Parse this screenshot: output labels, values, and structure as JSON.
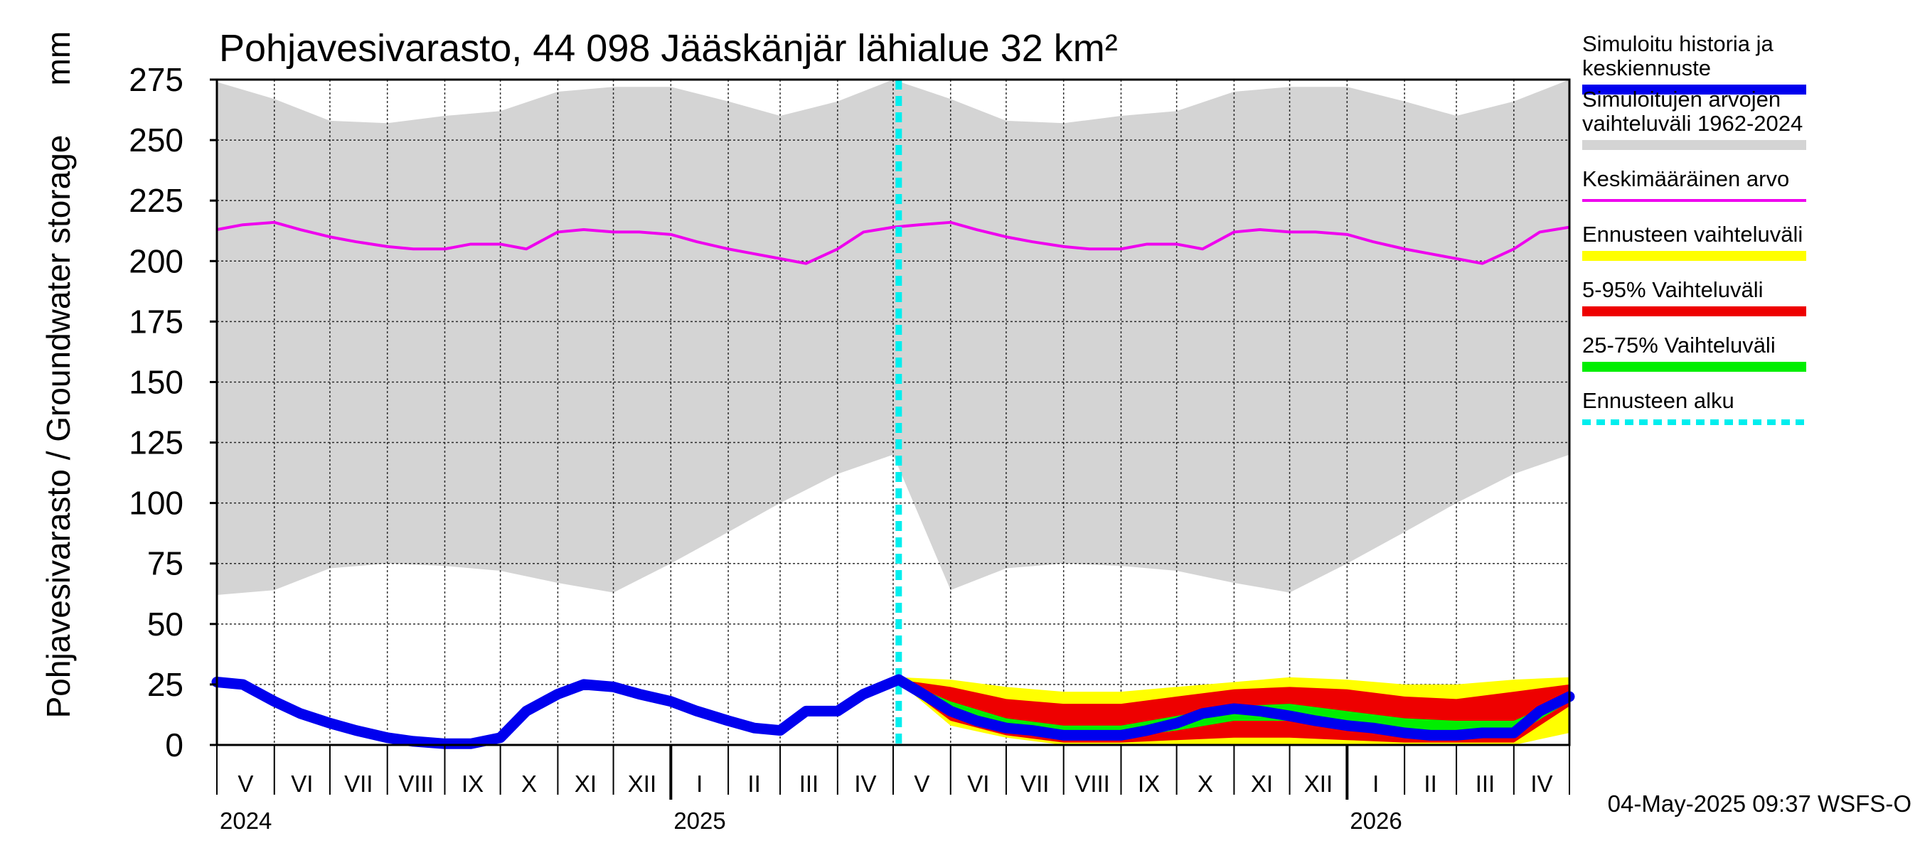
{
  "chart_data": {
    "type": "area",
    "title": "Pohjavesivarasto, 44 098 Jääskänjär lähialue 32 km²",
    "ylabel": "Pohjavesivarasto / Groundwater storage",
    "yunit": "mm",
    "ylim": [
      0,
      275
    ],
    "yticks": [
      0,
      25,
      50,
      75,
      100,
      125,
      150,
      175,
      200,
      225,
      250,
      275
    ],
    "xlim": [
      "2024-05-01",
      "2026-05-01"
    ],
    "grid": true,
    "legend_position": "right",
    "month_labels": [
      "V",
      "VI",
      "VII",
      "VIII",
      "IX",
      "X",
      "XI",
      "XII",
      "I",
      "II",
      "III",
      "IV",
      "V",
      "VI",
      "VII",
      "VIII",
      "IX",
      "X",
      "XI",
      "XII",
      "I",
      "II",
      "III",
      "IV"
    ],
    "year_labels": [
      {
        "label": "2024",
        "date": "2024-05-01"
      },
      {
        "label": "2025",
        "date": "2025-01-01"
      },
      {
        "label": "2026",
        "date": "2026-01-01"
      }
    ],
    "forecast_start": "2025-05-04",
    "footer": "04-May-2025 09:37 WSFS-O",
    "colors": {
      "history": "#0000ee",
      "range": "#d4d4d4",
      "mean": "#ee00ee",
      "forecast_range": "#ffff00",
      "p5_95": "#ee0000",
      "p25_75": "#00ee00",
      "forecast_start": "#00eeee"
    },
    "legend": [
      {
        "key": "history",
        "lines": [
          "Simuloitu historia ja",
          "keskiennuste"
        ],
        "style": "thick"
      },
      {
        "key": "range",
        "lines": [
          "Simuloitujen arvojen",
          "vaihteluväli 1962-2024"
        ],
        "style": "thick"
      },
      {
        "key": "mean",
        "lines": [
          "Keskimääräinen arvo"
        ],
        "style": "thin"
      },
      {
        "key": "forecast_range",
        "lines": [
          "Ennusteen vaihteluväli"
        ],
        "style": "thick"
      },
      {
        "key": "p5_95",
        "lines": [
          "5-95% Vaihteluväli"
        ],
        "style": "thick"
      },
      {
        "key": "p25_75",
        "lines": [
          "25-75% Vaihteluväli"
        ],
        "style": "thick"
      },
      {
        "key": "forecast_start",
        "lines": [
          "Ennusteen alku"
        ],
        "style": "dashed"
      }
    ],
    "series": [
      {
        "name": "Simuloitu historia ja keskiennuste",
        "x": [
          "2024-05-01",
          "2024-05-15",
          "2024-06-01",
          "2024-06-15",
          "2024-07-01",
          "2024-07-15",
          "2024-08-01",
          "2024-08-15",
          "2024-09-01",
          "2024-09-15",
          "2024-10-01",
          "2024-10-15",
          "2024-11-01",
          "2024-11-15",
          "2024-12-01",
          "2024-12-15",
          "2025-01-01",
          "2025-01-15",
          "2025-02-01",
          "2025-02-15",
          "2025-03-01",
          "2025-03-15",
          "2025-04-01",
          "2025-04-15",
          "2025-05-04",
          "2025-05-15",
          "2025-06-01",
          "2025-06-15",
          "2025-07-01",
          "2025-07-15",
          "2025-08-01",
          "2025-08-15",
          "2025-09-01",
          "2025-09-15",
          "2025-10-01",
          "2025-10-15",
          "2025-11-01",
          "2025-11-15",
          "2025-12-01",
          "2025-12-15",
          "2026-01-01",
          "2026-01-15",
          "2026-02-01",
          "2026-02-15",
          "2026-03-01",
          "2026-03-15",
          "2026-04-01",
          "2026-04-15",
          "2026-05-01"
        ],
        "values": [
          26,
          25,
          18,
          13,
          9,
          6,
          3,
          1.5,
          0.5,
          0.5,
          3,
          14,
          21,
          25,
          24,
          21,
          18,
          14,
          10,
          7,
          6,
          14,
          14,
          21,
          27,
          22,
          14,
          10,
          7,
          6,
          4,
          4,
          4,
          6,
          9,
          13,
          15,
          14,
          12,
          10,
          8,
          7,
          5,
          4,
          4,
          5,
          5,
          14,
          20
        ]
      },
      {
        "name": "Keskimääräinen arvo",
        "x": [
          "2024-05-01",
          "2024-05-15",
          "2024-06-01",
          "2024-06-15",
          "2024-07-01",
          "2024-07-15",
          "2024-08-01",
          "2024-08-15",
          "2024-09-01",
          "2024-09-15",
          "2024-10-01",
          "2024-10-15",
          "2024-11-01",
          "2024-11-15",
          "2024-12-01",
          "2024-12-15",
          "2025-01-01",
          "2025-01-15",
          "2025-02-01",
          "2025-02-15",
          "2025-03-01",
          "2025-03-15",
          "2025-04-01",
          "2025-04-15",
          "2025-05-01",
          "2025-05-15",
          "2025-06-01",
          "2025-06-15",
          "2025-07-01",
          "2025-07-15",
          "2025-08-01",
          "2025-08-15",
          "2025-09-01",
          "2025-09-15",
          "2025-10-01",
          "2025-10-15",
          "2025-11-01",
          "2025-11-15",
          "2025-12-01",
          "2025-12-15",
          "2026-01-01",
          "2026-01-15",
          "2026-02-01",
          "2026-02-15",
          "2026-03-01",
          "2026-03-15",
          "2026-04-01",
          "2026-04-15",
          "2026-05-01"
        ],
        "values": [
          213,
          215,
          216,
          213,
          210,
          208,
          206,
          205,
          205,
          207,
          207,
          205,
          212,
          213,
          212,
          212,
          211,
          208,
          205,
          203,
          201,
          199,
          205,
          212,
          214,
          215,
          216,
          213,
          210,
          208,
          206,
          205,
          205,
          207,
          207,
          205,
          212,
          213,
          212,
          212,
          211,
          208,
          205,
          203,
          201,
          199,
          205,
          212,
          214
        ]
      },
      {
        "name": "Simuloitujen arvojen vaihteluväli 1962-2024",
        "x": [
          "2024-05-01",
          "2024-06-01",
          "2024-07-01",
          "2024-08-01",
          "2024-09-01",
          "2024-10-01",
          "2024-11-01",
          "2024-12-01",
          "2025-01-01",
          "2025-02-01",
          "2025-03-01",
          "2025-04-01",
          "2025-05-01",
          "2025-06-01",
          "2025-07-01",
          "2025-08-01",
          "2025-09-01",
          "2025-10-01",
          "2025-11-01",
          "2025-12-01",
          "2026-01-01",
          "2026-02-01",
          "2026-03-01",
          "2026-04-01",
          "2026-05-01"
        ],
        "max": [
          274,
          267,
          258,
          257,
          260,
          262,
          270,
          272,
          272,
          266,
          260,
          266,
          275,
          267,
          258,
          257,
          260,
          262,
          270,
          272,
          272,
          266,
          260,
          266,
          275
        ],
        "min": [
          62,
          64,
          73,
          75,
          74,
          72,
          67,
          63,
          75,
          88,
          100,
          112,
          120,
          64,
          73,
          75,
          74,
          72,
          67,
          63,
          75,
          88,
          100,
          112,
          120
        ]
      },
      {
        "name": "Ennusteen vaihteluväli",
        "x": [
          "2025-05-04",
          "2025-06-01",
          "2025-07-01",
          "2025-08-01",
          "2025-09-01",
          "2025-10-01",
          "2025-11-01",
          "2025-12-01",
          "2026-01-01",
          "2026-02-01",
          "2026-03-01",
          "2026-04-01",
          "2026-05-01"
        ],
        "max": [
          28,
          27,
          24,
          22,
          22,
          24,
          26,
          28,
          27,
          25,
          25,
          27,
          28
        ],
        "min": [
          26,
          8,
          3,
          0,
          0,
          0,
          0,
          0,
          0,
          0,
          0,
          0,
          5
        ]
      },
      {
        "name": "5-95% Vaihteluväli",
        "x": [
          "2025-05-04",
          "2025-06-01",
          "2025-07-01",
          "2025-08-01",
          "2025-09-01",
          "2025-10-01",
          "2025-11-01",
          "2025-12-01",
          "2026-01-01",
          "2026-02-01",
          "2026-03-01",
          "2026-04-01",
          "2026-05-01"
        ],
        "max": [
          27,
          24,
          19,
          17,
          17,
          20,
          23,
          24,
          23,
          20,
          19,
          22,
          25
        ],
        "min": [
          26,
          10,
          4,
          1,
          1,
          2,
          3,
          3,
          2,
          1,
          1,
          1,
          16
        ]
      },
      {
        "name": "25-75% Vaihteluväli",
        "x": [
          "2025-05-04",
          "2025-06-01",
          "2025-07-01",
          "2025-08-01",
          "2025-09-01",
          "2025-10-01",
          "2025-11-01",
          "2025-12-01",
          "2026-01-01",
          "2026-02-01",
          "2026-03-01",
          "2026-04-01",
          "2026-05-01"
        ],
        "max": [
          27,
          18,
          11,
          8,
          8,
          12,
          16,
          17,
          14,
          11,
          10,
          10,
          20
        ],
        "min": [
          26,
          14,
          7,
          3,
          3,
          6,
          10,
          10,
          8,
          6,
          4,
          4,
          18
        ]
      }
    ]
  }
}
